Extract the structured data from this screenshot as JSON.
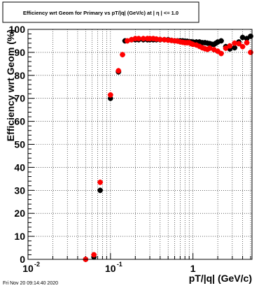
{
  "chart_data": {
    "type": "scatter",
    "title": "Efficiency wrt Geom for Primary vs pT/|q| (GeV/c) at | η | <= 1.0",
    "xlabel": "pT/|q| (GeV/c)",
    "ylabel": "Efficiency wrt Geom (%)",
    "xscale": "log",
    "xlim": [
      0.01,
      5.2
    ],
    "ylim": [
      0,
      100
    ],
    "grid": true,
    "xticks": [
      {
        "value": 0.01,
        "label": "10"
      },
      {
        "value": 0.1,
        "label": "10"
      },
      {
        "value": 1,
        "label": "1"
      }
    ],
    "xtick_exponents": [
      "-2",
      "-1",
      ""
    ],
    "yticks": [
      0,
      10,
      20,
      30,
      40,
      50,
      60,
      70,
      80,
      90,
      100
    ],
    "footer": "Fri Nov 20 09:14:40 2020",
    "series": [
      {
        "color": "#000000",
        "x": [
          0.05,
          0.063,
          0.075,
          0.1,
          0.125,
          0.15,
          0.18,
          0.2,
          0.22,
          0.25,
          0.28,
          0.3,
          0.33,
          0.36,
          0.4,
          0.45,
          0.5,
          0.55,
          0.6,
          0.65,
          0.7,
          0.75,
          0.8,
          0.85,
          0.9,
          0.95,
          1.0,
          1.1,
          1.2,
          1.3,
          1.4,
          1.5,
          1.6,
          1.7,
          1.8,
          1.9,
          2.0,
          2.2,
          2.5,
          2.8,
          3.2,
          3.6,
          4.0,
          4.5,
          5.0
        ],
        "y": [
          0,
          1,
          30,
          70,
          81.5,
          95,
          95.5,
          95.5,
          95.5,
          95.5,
          95.5,
          95.5,
          95.5,
          95.5,
          95.5,
          95.5,
          95.5,
          95.2,
          95,
          95,
          95,
          95,
          94.8,
          94.8,
          94.6,
          94.6,
          94.5,
          94.5,
          94.5,
          94.2,
          94.2,
          94,
          93.8,
          93.5,
          93.5,
          94,
          94.5,
          95,
          92.5,
          91.5,
          92,
          94.5,
          96.5,
          96,
          97
        ]
      },
      {
        "color": "#ff0000",
        "x": [
          0.05,
          0.063,
          0.075,
          0.1,
          0.125,
          0.14,
          0.16,
          0.18,
          0.2,
          0.22,
          0.25,
          0.28,
          0.3,
          0.33,
          0.36,
          0.4,
          0.45,
          0.5,
          0.55,
          0.6,
          0.65,
          0.7,
          0.75,
          0.8,
          0.85,
          0.9,
          0.95,
          1.0,
          1.1,
          1.2,
          1.3,
          1.4,
          1.5,
          1.6,
          1.8,
          2.0,
          2.2,
          2.5,
          2.8,
          3.2,
          3.6,
          4.0,
          4.5,
          5.0
        ],
        "y": [
          0,
          2,
          33.5,
          71.5,
          82,
          89,
          95,
          95.5,
          96,
          96,
          96,
          96,
          96,
          96,
          95.8,
          95.6,
          95.5,
          95.3,
          95.2,
          95,
          94.9,
          94.6,
          94.4,
          94.2,
          94.2,
          94.2,
          93.8,
          93.5,
          93.2,
          92.6,
          92,
          91.6,
          91.3,
          91.8,
          91.2,
          90.5,
          89.5,
          91.8,
          92.8,
          94,
          93.8,
          92.5,
          94.2,
          90
        ]
      }
    ]
  }
}
